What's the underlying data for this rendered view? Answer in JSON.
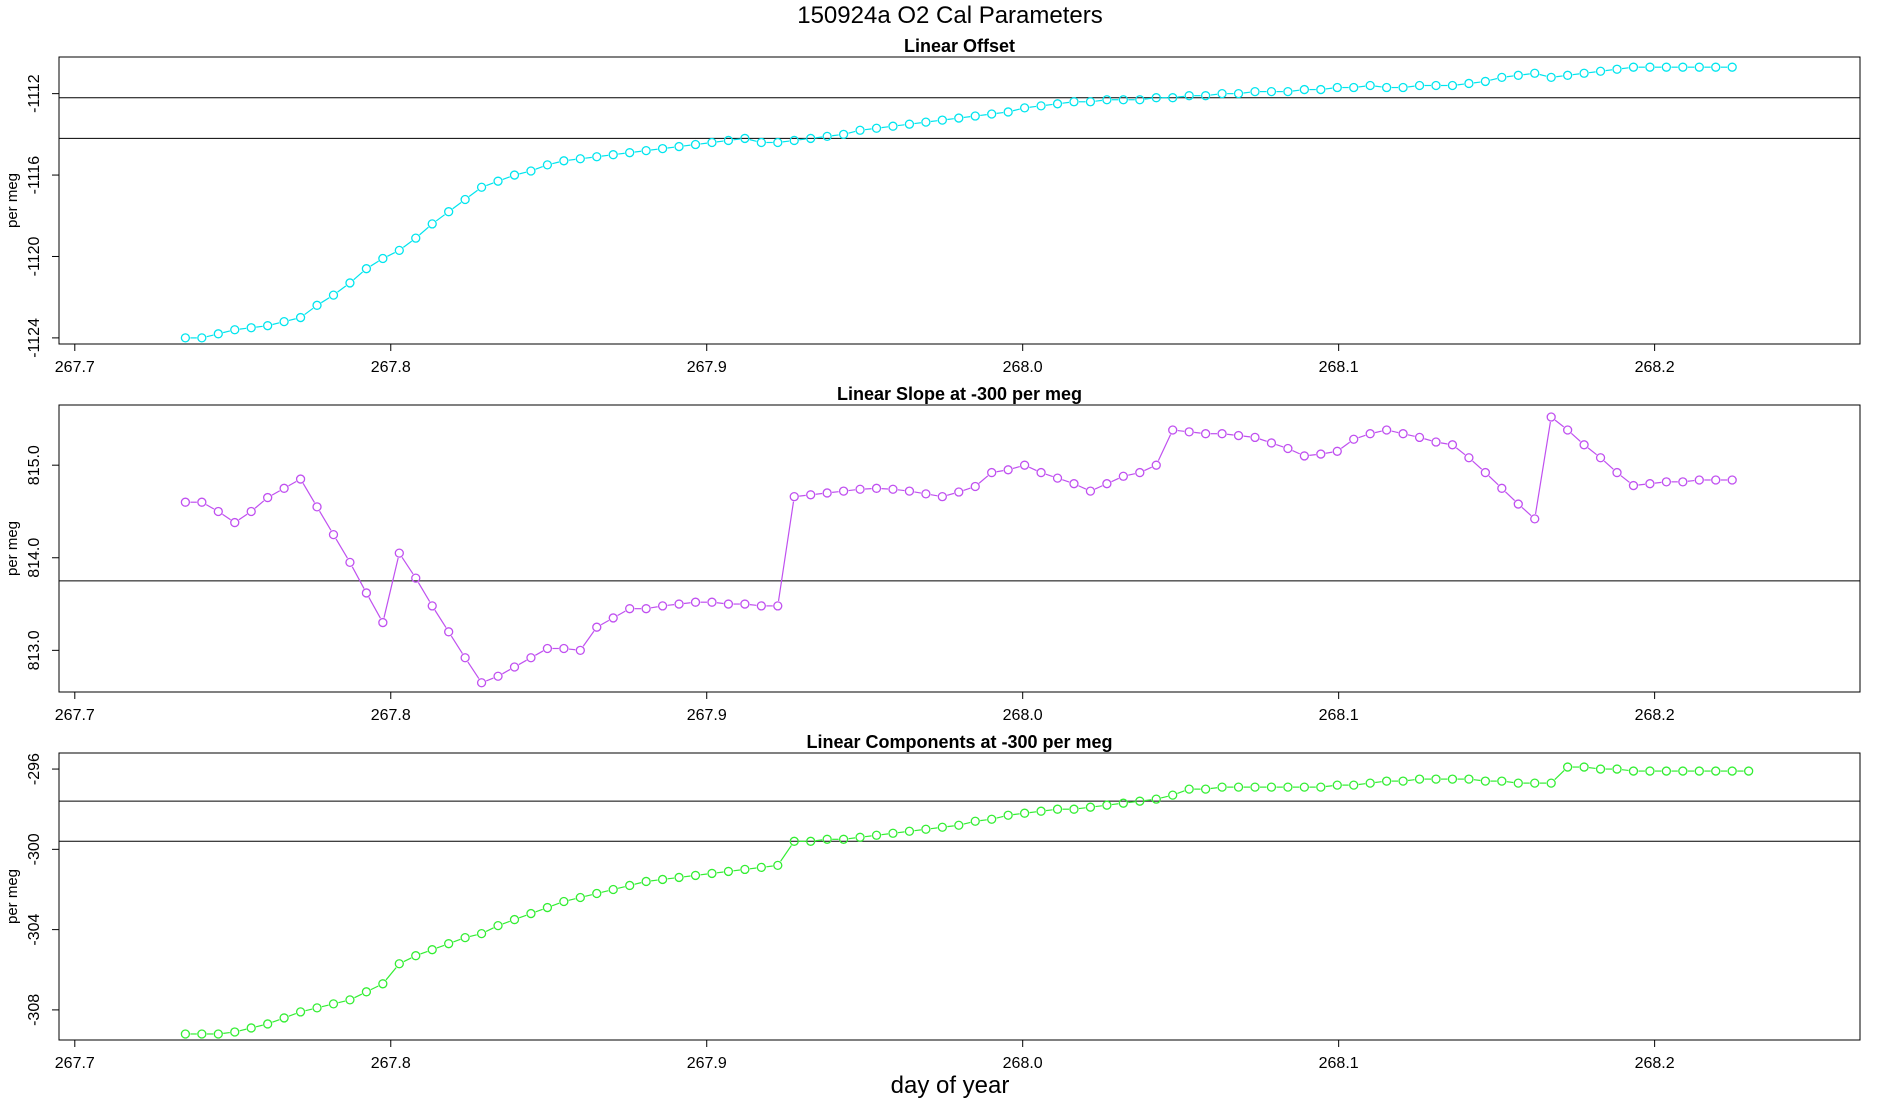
{
  "header": {
    "title": "150924a   O2 Cal Parameters",
    "xlabel": "day of year"
  },
  "chart_data": [
    {
      "type": "line",
      "title": "Linear Offset",
      "ylabel": "per meg",
      "color": "#00e5ee",
      "xlim": [
        267.695,
        268.265
      ],
      "ylim": [
        -1124.3,
        -1110.2
      ],
      "xticks": [
        267.7,
        267.8,
        267.9,
        268.0,
        268.1,
        268.2
      ],
      "xtick_labels": [
        "267.7",
        "267.8",
        "267.9",
        "268.0",
        "268.1",
        "268.2"
      ],
      "yticks": [
        -1124,
        -1120,
        -1116,
        -1112
      ],
      "ytick_labels": [
        "-1124",
        "-1120",
        "-1116",
        "-1112"
      ],
      "hlines": [
        -1112.2,
        -1114.2
      ],
      "x_start": 267.735,
      "x_step": 0.005208,
      "values": [
        -1124.0,
        -1124.0,
        -1123.8,
        -1123.6,
        -1123.5,
        -1123.4,
        -1123.2,
        -1123.0,
        -1122.4,
        -1121.9,
        -1121.3,
        -1120.6,
        -1120.1,
        -1119.7,
        -1119.1,
        -1118.4,
        -1117.8,
        -1117.2,
        -1116.6,
        -1116.3,
        -1116.0,
        -1115.8,
        -1115.5,
        -1115.3,
        -1115.2,
        -1115.1,
        -1115.0,
        -1114.9,
        -1114.8,
        -1114.7,
        -1114.6,
        -1114.5,
        -1114.4,
        -1114.3,
        -1114.2,
        -1114.4,
        -1114.4,
        -1114.3,
        -1114.2,
        -1114.1,
        -1114.0,
        -1113.8,
        -1113.7,
        -1113.6,
        -1113.5,
        -1113.4,
        -1113.3,
        -1113.2,
        -1113.1,
        -1113.0,
        -1112.9,
        -1112.7,
        -1112.6,
        -1112.5,
        -1112.4,
        -1112.4,
        -1112.3,
        -1112.3,
        -1112.3,
        -1112.2,
        -1112.2,
        -1112.1,
        -1112.1,
        -1112.0,
        -1112.0,
        -1111.9,
        -1111.9,
        -1111.9,
        -1111.8,
        -1111.8,
        -1111.7,
        -1111.7,
        -1111.6,
        -1111.7,
        -1111.7,
        -1111.6,
        -1111.6,
        -1111.6,
        -1111.5,
        -1111.4,
        -1111.2,
        -1111.1,
        -1111.0,
        -1111.2,
        -1111.1,
        -1111.0,
        -1110.9,
        -1110.8,
        -1110.7,
        -1110.7,
        -1110.7,
        -1110.7,
        -1110.7,
        -1110.7,
        -1110.7
      ]
    },
    {
      "type": "line",
      "title": "Linear Slope at -300 per meg",
      "ylabel": "per meg",
      "color": "#c050f0",
      "xlim": [
        267.695,
        268.265
      ],
      "ylim": [
        812.55,
        815.65
      ],
      "xticks": [
        267.7,
        267.8,
        267.9,
        268.0,
        268.1,
        268.2
      ],
      "xtick_labels": [
        "267.7",
        "267.8",
        "267.9",
        "268.0",
        "268.1",
        "268.2"
      ],
      "yticks": [
        813.0,
        814.0,
        815.0
      ],
      "ytick_labels": [
        "813.0",
        "814.0",
        "815.0"
      ],
      "hlines": [
        813.75
      ],
      "x_start": 267.735,
      "x_step": 0.005208,
      "values": [
        814.6,
        814.6,
        814.5,
        814.38,
        814.5,
        814.65,
        814.75,
        814.85,
        814.55,
        814.25,
        813.95,
        813.62,
        813.3,
        814.05,
        813.78,
        813.48,
        813.2,
        812.92,
        812.65,
        812.72,
        812.82,
        812.92,
        813.02,
        813.02,
        813.0,
        813.25,
        813.35,
        813.45,
        813.45,
        813.48,
        813.5,
        813.52,
        813.52,
        813.5,
        813.5,
        813.48,
        813.48,
        814.66,
        814.68,
        814.7,
        814.72,
        814.74,
        814.75,
        814.74,
        814.72,
        814.69,
        814.66,
        814.71,
        814.77,
        814.92,
        814.95,
        815.0,
        814.92,
        814.86,
        814.8,
        814.72,
        814.8,
        814.88,
        814.92,
        815.0,
        815.38,
        815.36,
        815.34,
        815.34,
        815.32,
        815.3,
        815.24,
        815.18,
        815.1,
        815.12,
        815.15,
        815.28,
        815.34,
        815.38,
        815.34,
        815.3,
        815.25,
        815.22,
        815.08,
        814.92,
        814.75,
        814.58,
        814.42,
        815.52,
        815.38,
        815.22,
        815.08,
        814.92,
        814.78,
        814.8,
        814.82,
        814.82,
        814.84,
        814.84,
        814.84
      ]
    },
    {
      "type": "line",
      "title": "Linear Components at -300 per meg",
      "ylabel": "per meg",
      "color": "#33ee33",
      "xlim": [
        267.695,
        268.265
      ],
      "ylim": [
        -309.5,
        -295.2
      ],
      "xticks": [
        267.7,
        267.8,
        267.9,
        268.0,
        268.1,
        268.2
      ],
      "xtick_labels": [
        "267.7",
        "267.8",
        "267.9",
        "268.0",
        "268.1",
        "268.2"
      ],
      "yticks": [
        -308,
        -304,
        -300,
        -296
      ],
      "ytick_labels": [
        "-308",
        "-304",
        "-300",
        "-296"
      ],
      "hlines": [
        -297.6,
        -299.6
      ],
      "x_start": 267.735,
      "x_step": 0.005208,
      "values": [
        -309.2,
        -309.2,
        -309.2,
        -309.1,
        -308.9,
        -308.7,
        -308.4,
        -308.1,
        -307.9,
        -307.7,
        -307.5,
        -307.1,
        -306.7,
        -305.7,
        -305.3,
        -305.0,
        -304.7,
        -304.4,
        -304.2,
        -303.8,
        -303.5,
        -303.2,
        -302.9,
        -302.6,
        -302.4,
        -302.2,
        -302.0,
        -301.8,
        -301.6,
        -301.5,
        -301.4,
        -301.3,
        -301.2,
        -301.1,
        -301.0,
        -300.9,
        -300.8,
        -299.6,
        -299.6,
        -299.5,
        -299.5,
        -299.4,
        -299.3,
        -299.2,
        -299.1,
        -299.0,
        -298.9,
        -298.8,
        -298.6,
        -298.5,
        -298.3,
        -298.2,
        -298.1,
        -298.0,
        -298.0,
        -297.9,
        -297.8,
        -297.7,
        -297.6,
        -297.5,
        -297.3,
        -297.0,
        -297.0,
        -296.9,
        -296.9,
        -296.9,
        -296.9,
        -296.9,
        -296.9,
        -296.9,
        -296.8,
        -296.8,
        -296.7,
        -296.6,
        -296.6,
        -296.5,
        -296.5,
        -296.5,
        -296.5,
        -296.6,
        -296.6,
        -296.7,
        -296.7,
        -296.7,
        -295.9,
        -295.9,
        -296.0,
        -296.0,
        -296.1,
        -296.1,
        -296.1,
        -296.1,
        -296.1,
        -296.1,
        -296.1,
        -296.1
      ]
    }
  ]
}
